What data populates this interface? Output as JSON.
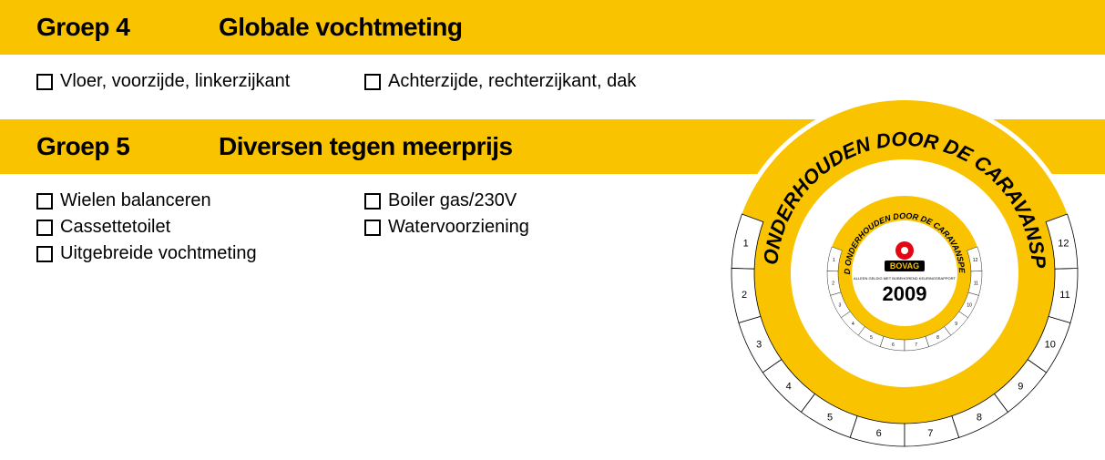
{
  "colors": {
    "header_bg": "#f9c300",
    "text": "#000000",
    "page_bg": "#ffffff",
    "sticker_ring": "#f9c300",
    "sticker_inner_bg": "#ffffff",
    "sticker_center_bg": "#ffffff",
    "bovag_red": "#e30613"
  },
  "typography": {
    "header_fontsize": 28,
    "header_weight": 900,
    "item_fontsize": 20,
    "sticker_outer_text_fontsize": 22,
    "sticker_inner_text_fontsize": 10,
    "sticker_year_fontsize": 24,
    "sticker_month_fontsize": 11
  },
  "groups": [
    {
      "label": "Groep 4",
      "title": "Globale vochtmeting",
      "columns": [
        [
          "Vloer, voorzijde, linkerzijkant"
        ],
        [
          "Achterzijde, rechterzijkant, dak"
        ]
      ]
    },
    {
      "label": "Groep 5",
      "title": "Diversen tegen meerprijs",
      "columns": [
        [
          "Wielen balanceren",
          "Cassettetoilet",
          "Uitgebreide vochtmeting"
        ],
        [
          "Boiler gas/230V",
          "Watervoorziening"
        ]
      ]
    }
  ],
  "sticker": {
    "outer_text": "IK WORD ONDERHOUDEN DOOR DE CARAVANSPECIALIST",
    "inner_text": "IK WORD ONDERHOUDEN DOOR DE CARAVANSPECIALIST",
    "brand": "BOVAG",
    "subline": "ALLEEN GELDIG MET BIJBEHOREND KEURINGSRAPPORT",
    "year": "2009",
    "months_outer": [
      "1",
      "2",
      "3",
      "4",
      "5",
      "6",
      "7",
      "8",
      "9",
      "10",
      "11",
      "12"
    ],
    "months_inner": [
      "1",
      "2",
      "3",
      "4",
      "5",
      "6",
      "7",
      "8",
      "9",
      "10",
      "11",
      "12"
    ]
  }
}
